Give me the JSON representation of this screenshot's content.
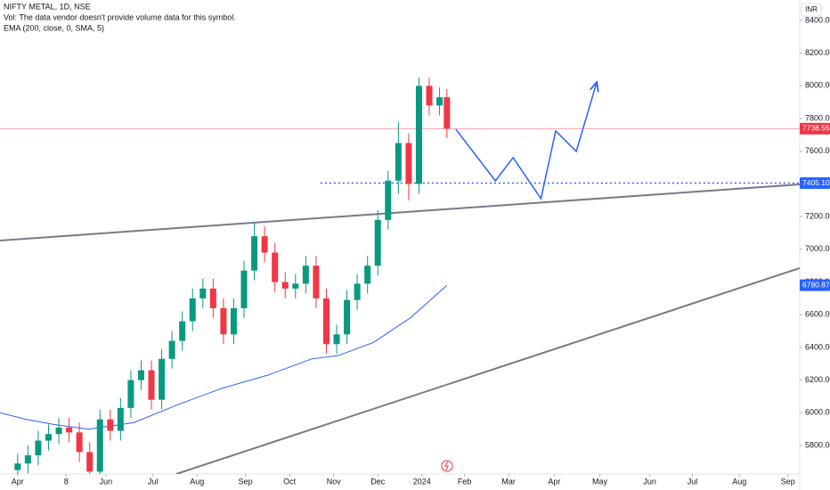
{
  "chart_data": {
    "type": "candlestick",
    "title": "NIFTY METAL, 1D, NSE",
    "notes": [
      "Vol: The data vendor doesn't provide volume data for this symbol."
    ],
    "currency": "INR",
    "xlim": [
      -12,
      532
    ],
    "ylim": [
      5626,
      8525
    ],
    "xticks": [
      {
        "value": 0,
        "label": "Apr"
      },
      {
        "value": 33,
        "label": "8"
      },
      {
        "value": 60,
        "label": "Jun"
      },
      {
        "value": 92,
        "label": "Jul"
      },
      {
        "value": 122,
        "label": "Aug"
      },
      {
        "value": 155,
        "label": "Sep"
      },
      {
        "value": 185,
        "label": "Oct"
      },
      {
        "value": 215,
        "label": "Nov"
      },
      {
        "value": 245,
        "label": "Dec"
      },
      {
        "value": 275,
        "label": "2024"
      },
      {
        "value": 304,
        "label": "Feb"
      },
      {
        "value": 334,
        "label": "Mar"
      },
      {
        "value": 365,
        "label": "Apr"
      },
      {
        "value": 396,
        "label": "May"
      },
      {
        "value": 430,
        "label": "Jun"
      },
      {
        "value": 459,
        "label": "Jul"
      },
      {
        "value": 491,
        "label": "Aug"
      },
      {
        "value": 524,
        "label": "Sep"
      }
    ],
    "yticks": [
      {
        "value": 5800,
        "label": "5800.00"
      },
      {
        "value": 6000,
        "label": "6000.00"
      },
      {
        "value": 6200,
        "label": "6200.00"
      },
      {
        "value": 6400,
        "label": "6400.00"
      },
      {
        "value": 6600,
        "label": "6600.00"
      },
      {
        "value": 6800,
        "label": "6800.00"
      },
      {
        "value": 7000,
        "label": "7000.00"
      },
      {
        "value": 7200,
        "label": "7200.00"
      },
      {
        "value": 7400,
        "label": "7400.00"
      },
      {
        "value": 7600,
        "label": "7600.00"
      },
      {
        "value": 7800,
        "label": "7800.00"
      },
      {
        "value": 8000,
        "label": "8000.00"
      },
      {
        "value": 8200,
        "label": "8200.00"
      },
      {
        "value": 8400,
        "label": "8400.00"
      }
    ],
    "up_color": "#089981",
    "down_color": "#f23645",
    "ohlc": {
      "x": [
        0,
        7,
        14,
        21,
        28,
        35,
        42,
        49,
        56,
        63,
        70,
        77,
        84,
        91,
        98,
        105,
        112,
        119,
        126,
        133,
        140,
        147,
        154,
        161,
        168,
        175,
        182,
        189,
        196,
        203,
        210,
        217,
        224,
        231,
        238,
        245,
        252,
        259,
        266,
        273,
        280,
        287,
        292
      ],
      "open": [
        5650,
        5690,
        5740,
        5830,
        5870,
        5910,
        5880,
        5760,
        5640,
        5960,
        5890,
        6030,
        6200,
        6260,
        6080,
        6330,
        6440,
        6560,
        6700,
        6760,
        6640,
        6480,
        6640,
        6870,
        7080,
        6980,
        6800,
        6760,
        6790,
        6900,
        6700,
        6420,
        6480,
        6690,
        6790,
        6900,
        7180,
        7420,
        7650,
        7400,
        8000,
        7880,
        7930
      ],
      "high": [
        5750,
        5800,
        5890,
        5930,
        5970,
        5970,
        5940,
        5820,
        6020,
        6020,
        6090,
        6260,
        6320,
        6320,
        6390,
        6500,
        6620,
        6760,
        6820,
        6820,
        6700,
        6700,
        6930,
        7165,
        7140,
        7040,
        6860,
        6850,
        6960,
        6960,
        6760,
        6540,
        6750,
        6850,
        6960,
        7240,
        7480,
        7780,
        7710,
        8050,
        8050,
        7990,
        7980
      ],
      "low": [
        5590,
        5630,
        5680,
        5770,
        5810,
        5820,
        5700,
        5580,
        5580,
        5830,
        5830,
        5970,
        6140,
        6020,
        6020,
        6270,
        6380,
        6500,
        6640,
        6580,
        6420,
        6420,
        6580,
        6810,
        6920,
        6740,
        6700,
        6700,
        6730,
        6640,
        6360,
        6360,
        6420,
        6630,
        6730,
        6840,
        7120,
        7340,
        7300,
        7340,
        7820,
        7820,
        7680
      ],
      "close": [
        5690,
        5740,
        5830,
        5870,
        5910,
        5880,
        5760,
        5640,
        5960,
        5890,
        6030,
        6200,
        6260,
        6080,
        6330,
        6440,
        6560,
        6700,
        6760,
        6640,
        6480,
        6640,
        6870,
        7080,
        6980,
        6800,
        6760,
        6790,
        6900,
        6700,
        6420,
        6480,
        6690,
        6790,
        6900,
        7180,
        7420,
        7650,
        7400,
        8000,
        7880,
        7930,
        7738
      ]
    },
    "ema": {
      "name": "EMA (200, close, 0, SMA, 5)",
      "color": "#2962ff",
      "x": [
        -12,
        6,
        24,
        48,
        79,
        109,
        139,
        170,
        200,
        218,
        242,
        267,
        292
      ],
      "values": [
        6000,
        5960,
        5930,
        5900,
        5940,
        6050,
        6150,
        6230,
        6330,
        6350,
        6430,
        6580,
        6780
      ]
    },
    "drawings": [
      {
        "color": "#787b86",
        "style": "solid",
        "x": [
          -12,
          532
        ],
        "y": [
          7054,
          7397
        ]
      },
      {
        "color": "#787b86",
        "style": "solid",
        "x": [
          108,
          532
        ],
        "y": [
          5626,
          6885
        ]
      },
      {
        "color": "#2962ff",
        "style": "dotted",
        "x": [
          206,
          532
        ],
        "y": [
          7405.1,
          7405.1
        ]
      },
      {
        "color": "#2962ff",
        "style": "arrow",
        "x": [
          298,
          325,
          337,
          356,
          366,
          380,
          394
        ],
        "y": [
          7735,
          7419,
          7561,
          7310,
          7724,
          7599,
          8024
        ]
      }
    ],
    "price_labels": [
      {
        "value": 7738.55,
        "label": "7738.55",
        "color": "#f23645",
        "line": true
      },
      {
        "value": 7405.1,
        "label": "7405.10",
        "color": "#2962ff",
        "line": false
      },
      {
        "value": 6780.87,
        "label": "6780.87",
        "color": "#2962ff",
        "line": false
      }
    ]
  }
}
